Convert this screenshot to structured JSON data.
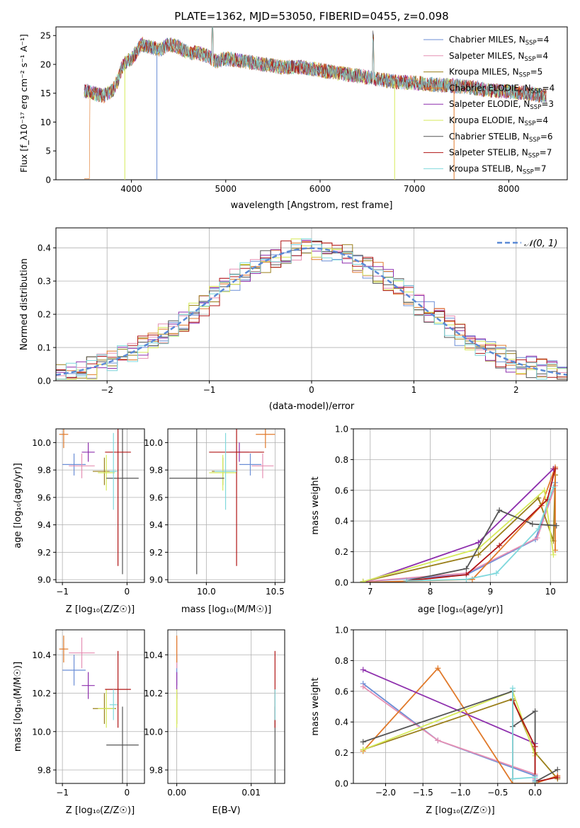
{
  "figure_title": "PLATE=1362, MJD=53050, FIBERID=0455, z=0.098",
  "colors": {
    "chabrier_miles": "#6b8ed6",
    "salpeter_miles": "#e68fb3",
    "kroupa_miles": "#9a7f1a",
    "chabrier_elodie": "#e0792a",
    "salpeter_elodie": "#8e2fad",
    "kroupa_elodie": "#d6ea5a",
    "chabrier_stelib": "#555555",
    "salpeter_stelib": "#b01515",
    "kroupa_stelib": "#7fd8dc",
    "normal_curve": "#5b8ad6",
    "grid": "#b0b0b0"
  },
  "chart_data": [
    {
      "id": "spectrum",
      "type": "line",
      "title": "",
      "xlabel": "wavelength [Angstrom, rest frame]",
      "ylabel": "Flux [f_λ10⁻¹⁷ erg cm⁻² s⁻¹ A⁻¹]",
      "xlim": [
        3200,
        8620
      ],
      "ylim": [
        0,
        26.5
      ],
      "xticks": [
        4000,
        5000,
        6000,
        7000,
        8000
      ],
      "yticks": [
        0,
        5,
        10,
        15,
        20,
        25
      ],
      "grid": false,
      "legend_position": "top-right",
      "legend": [
        {
          "label": "Chabrier MILES, N",
          "sub": "SSP",
          "suffix": "=4",
          "color": "#6b8ed6"
        },
        {
          "label": "Salpeter MILES, N",
          "sub": "SSP",
          "suffix": "=4",
          "color": "#e68fb3"
        },
        {
          "label": "Kroupa MILES, N",
          "sub": "SSP",
          "suffix": "=5",
          "color": "#9a7f1a"
        },
        {
          "label": "Chabrier ELODIE, N",
          "sub": "SSP",
          "suffix": "=4",
          "color": "#e0792a"
        },
        {
          "label": "Salpeter ELODIE, N",
          "sub": "SSP",
          "suffix": "=3",
          "color": "#8e2fad"
        },
        {
          "label": "Kroupa ELODIE, N",
          "sub": "SSP",
          "suffix": "=4",
          "color": "#d6ea5a"
        },
        {
          "label": "Chabrier STELIB, N",
          "sub": "SSP",
          "suffix": "=6",
          "color": "#555555"
        },
        {
          "label": "Salpeter STELIB, N",
          "sub": "SSP",
          "suffix": "=7",
          "color": "#b01515"
        },
        {
          "label": "Kroupa STELIB, N",
          "sub": "SSP",
          "suffix": "=7",
          "color": "#7fd8dc"
        }
      ],
      "continuum": {
        "x": [
          3500,
          3600,
          3700,
          3800,
          3850,
          3900,
          3950,
          4000,
          4050,
          4100,
          4200,
          4300,
          4400,
          4500,
          4600,
          4700,
          4800,
          4900,
          5000,
          5200,
          5400,
          5600,
          5800,
          6000,
          6200,
          6400,
          6600,
          6800,
          7000,
          7200,
          7400,
          7600,
          7800,
          8000,
          8200,
          8400
        ],
        "y": [
          15.5,
          15.0,
          14.5,
          15.5,
          17.0,
          19.5,
          20.5,
          21.0,
          22.0,
          23.5,
          23.0,
          22.5,
          23.5,
          23.0,
          22.0,
          22.0,
          21.5,
          20.5,
          21.0,
          20.5,
          20.0,
          19.5,
          19.5,
          19.0,
          18.5,
          18.0,
          17.5,
          17.0,
          16.8,
          16.5,
          16.3,
          16.0,
          15.5,
          15.3,
          15.0,
          14.5
        ]
      }
    },
    {
      "id": "residuals",
      "type": "histogram",
      "title": "",
      "xlabel": "(data-model)/error",
      "ylabel": "Normed distribution",
      "xlim": [
        -2.5,
        2.5
      ],
      "ylim": [
        0,
        0.46
      ],
      "xticks": [
        -2,
        -1,
        0,
        1,
        2
      ],
      "yticks": [
        0.0,
        0.1,
        0.2,
        0.3,
        0.4
      ],
      "grid": true,
      "legend_position": "top-right",
      "legend_label": "𝒩(0, 1)",
      "normal": {
        "mean": 0,
        "sigma": 1
      }
    },
    {
      "id": "age_vs_z",
      "type": "errorbar",
      "xlabel": "Z [log₁₀(Z/Z☉)]",
      "ylabel": "age  [log₁₀(age/yr)]",
      "xlim": [
        -1.1,
        0.27
      ],
      "ylim": [
        8.98,
        10.1
      ],
      "xticks": [
        -1,
        0
      ],
      "yticks": [
        9.0,
        9.2,
        9.4,
        9.6,
        9.8,
        10.0
      ],
      "grid": true,
      "points": [
        {
          "series": "Chabrier MILES",
          "x": -0.82,
          "xerr": 0.18,
          "y": 9.84,
          "yerr": 0.08
        },
        {
          "series": "Salpeter MILES",
          "x": -0.7,
          "xerr": 0.2,
          "y": 9.83,
          "yerr": 0.09
        },
        {
          "series": "Kroupa MILES",
          "x": -0.35,
          "xerr": 0.18,
          "y": 9.79,
          "yerr": 0.1
        },
        {
          "series": "Chabrier ELODIE",
          "x": -0.98,
          "xerr": 0.07,
          "y": 10.06,
          "yerr": 0.1
        },
        {
          "series": "Salpeter ELODIE",
          "x": -0.6,
          "xerr": 0.1,
          "y": 9.93,
          "yerr": 0.07
        },
        {
          "series": "Kroupa ELODIE",
          "x": -0.32,
          "xerr": 0.13,
          "y": 9.78,
          "yerr": 0.13
        },
        {
          "series": "Chabrier STELIB",
          "x": -0.07,
          "xerr": 0.25,
          "y": 9.74,
          "yerr": 0.7
        },
        {
          "series": "Salpeter STELIB",
          "x": -0.14,
          "xerr": 0.2,
          "y": 9.93,
          "yerr": 0.83
        },
        {
          "series": "Kroupa STELIB",
          "x": -0.21,
          "xerr": 0.06,
          "y": 9.79,
          "yerr": 0.28
        }
      ]
    },
    {
      "id": "age_vs_mass",
      "type": "errorbar",
      "xlabel": "mass [log₁₀(M/M☉)]",
      "ylabel": "",
      "xlim": [
        9.72,
        10.57
      ],
      "ylim": [
        8.98,
        10.1
      ],
      "xticks": [
        10.0,
        10.5
      ],
      "yticks": [
        9.0,
        9.2,
        9.4,
        9.6,
        9.8,
        10.0
      ],
      "grid": true,
      "points": [
        {
          "series": "Chabrier MILES",
          "x": 10.32,
          "xerr": 0.08,
          "y": 9.84,
          "yerr": 0.08
        },
        {
          "series": "Salpeter MILES",
          "x": 10.41,
          "xerr": 0.08,
          "y": 9.83,
          "yerr": 0.09
        },
        {
          "series": "Kroupa MILES",
          "x": 10.12,
          "xerr": 0.08,
          "y": 9.79,
          "yerr": 0.1
        },
        {
          "series": "Chabrier ELODIE",
          "x": 10.43,
          "xerr": 0.07,
          "y": 10.06,
          "yerr": 0.1
        },
        {
          "series": "Salpeter ELODIE",
          "x": 10.24,
          "xerr": 0.07,
          "y": 9.93,
          "yerr": 0.07
        },
        {
          "series": "Kroupa ELODIE",
          "x": 10.12,
          "xerr": 0.1,
          "y": 9.78,
          "yerr": 0.13
        },
        {
          "series": "Chabrier STELIB",
          "x": 9.93,
          "xerr": 0.2,
          "y": 9.74,
          "yerr": 0.7
        },
        {
          "series": "Salpeter STELIB",
          "x": 10.22,
          "xerr": 0.2,
          "y": 9.93,
          "yerr": 0.83
        },
        {
          "series": "Kroupa STELIB",
          "x": 10.14,
          "xerr": 0.08,
          "y": 9.79,
          "yerr": 0.28
        }
      ]
    },
    {
      "id": "weight_vs_age",
      "type": "line",
      "xlabel": "age  [log₁₀(age/yr)]",
      "ylabel": "mass weight",
      "xlim": [
        6.72,
        10.28
      ],
      "ylim": [
        0,
        1.0
      ],
      "xticks": [
        7,
        8,
        9,
        10
      ],
      "yticks": [
        0.0,
        0.2,
        0.4,
        0.6,
        0.8,
        1.0
      ],
      "grid": true,
      "series": [
        {
          "name": "Chabrier MILES",
          "x": [
            6.88,
            8.6,
            9.75,
            10.08
          ],
          "y": [
            0.005,
            0.05,
            0.28,
            0.65
          ]
        },
        {
          "name": "Salpeter MILES",
          "x": [
            6.88,
            8.6,
            9.78,
            10.08
          ],
          "y": [
            0.005,
            0.06,
            0.29,
            0.63
          ]
        },
        {
          "name": "Kroupa MILES",
          "x": [
            6.88,
            8.8,
            9.8,
            10.05,
            10.08
          ],
          "y": [
            0.005,
            0.18,
            0.55,
            0.27,
            0.7
          ]
        },
        {
          "name": "Chabrier ELODIE",
          "x": [
            6.88,
            8.7,
            9.85,
            10.08,
            10.08
          ],
          "y": [
            0.0,
            0.02,
            0.5,
            0.75,
            0.21
          ]
        },
        {
          "name": "Salpeter ELODIE",
          "x": [
            6.88,
            8.8,
            10.05
          ],
          "y": [
            0.0,
            0.26,
            0.74
          ]
        },
        {
          "name": "Kroupa ELODIE",
          "x": [
            6.88,
            8.8,
            9.9,
            10.05
          ],
          "y": [
            0.005,
            0.22,
            0.6,
            0.18
          ]
        },
        {
          "name": "Chabrier STELIB",
          "x": [
            7.6,
            8.6,
            9.15,
            9.7,
            10.1
          ],
          "y": [
            0.01,
            0.09,
            0.47,
            0.38,
            0.37
          ]
        },
        {
          "name": "Salpeter STELIB",
          "x": [
            7.6,
            8.6,
            9.15,
            9.95,
            10.08
          ],
          "y": [
            0.01,
            0.05,
            0.24,
            0.54,
            0.74
          ]
        },
        {
          "name": "Kroupa STELIB",
          "x": [
            7.6,
            8.6,
            9.1,
            9.8,
            10.05
          ],
          "y": [
            0.01,
            0.02,
            0.06,
            0.35,
            0.62
          ]
        }
      ]
    },
    {
      "id": "mass_vs_z",
      "type": "errorbar",
      "xlabel": "Z [log₁₀(Z/Z☉)]",
      "ylabel": "mass [log₁₀(M/M☉)]",
      "xlim": [
        -1.1,
        0.27
      ],
      "ylim": [
        9.73,
        10.53
      ],
      "xticks": [
        -1,
        0
      ],
      "yticks": [
        9.8,
        10.0,
        10.2,
        10.4
      ],
      "grid": true,
      "points": [
        {
          "series": "Chabrier MILES",
          "x": -0.82,
          "xerr": 0.18,
          "y": 10.32,
          "yerr": 0.08
        },
        {
          "series": "Salpeter MILES",
          "x": -0.7,
          "xerr": 0.2,
          "y": 10.41,
          "yerr": 0.08
        },
        {
          "series": "Kroupa MILES",
          "x": -0.35,
          "xerr": 0.18,
          "y": 10.12,
          "yerr": 0.08
        },
        {
          "series": "Chabrier ELODIE",
          "x": -0.98,
          "xerr": 0.07,
          "y": 10.43,
          "yerr": 0.07
        },
        {
          "series": "Salpeter ELODIE",
          "x": -0.6,
          "xerr": 0.1,
          "y": 10.24,
          "yerr": 0.07
        },
        {
          "series": "Kroupa ELODIE",
          "x": -0.32,
          "xerr": 0.13,
          "y": 10.12,
          "yerr": 0.1
        },
        {
          "series": "Chabrier STELIB",
          "x": -0.07,
          "xerr": 0.25,
          "y": 9.93,
          "yerr": 0.2
        },
        {
          "series": "Salpeter STELIB",
          "x": -0.14,
          "xerr": 0.2,
          "y": 10.22,
          "yerr": 0.2
        },
        {
          "series": "Kroupa STELIB",
          "x": -0.21,
          "xerr": 0.06,
          "y": 10.14,
          "yerr": 0.08
        }
      ]
    },
    {
      "id": "mass_vs_ebv",
      "type": "errorbar",
      "xlabel": "E(B-V)",
      "ylabel": "",
      "xlim": [
        -0.0012,
        0.0145
      ],
      "ylim": [
        9.73,
        10.53
      ],
      "xticks": [
        0.0,
        0.01
      ],
      "yticks": [
        9.8,
        10.0,
        10.2,
        10.4
      ],
      "grid": true,
      "points": [
        {
          "series": "Chabrier MILES",
          "x": 0.0,
          "xerr": 0,
          "y": 10.32,
          "yerr": 0.08
        },
        {
          "series": "Salpeter MILES",
          "x": 0.0,
          "xerr": 0,
          "y": 10.41,
          "yerr": 0.08
        },
        {
          "series": "Kroupa MILES",
          "x": 0.0,
          "xerr": 0,
          "y": 10.12,
          "yerr": 0.08
        },
        {
          "series": "Chabrier ELODIE",
          "x": 0.0,
          "xerr": 0,
          "y": 10.43,
          "yerr": 0.07
        },
        {
          "series": "Salpeter ELODIE",
          "x": 0.0,
          "xerr": 0,
          "y": 10.24,
          "yerr": 0.07
        },
        {
          "series": "Kroupa ELODIE",
          "x": 0.0,
          "xerr": 0,
          "y": 10.12,
          "yerr": 0.1
        },
        {
          "series": "Chabrier STELIB",
          "x": 0.0132,
          "xerr": 0,
          "y": 9.93,
          "yerr": 0.2
        },
        {
          "series": "Salpeter STELIB",
          "x": 0.0132,
          "xerr": 0,
          "y": 10.22,
          "yerr": 0.2
        },
        {
          "series": "Kroupa STELIB",
          "x": 0.0132,
          "xerr": 0,
          "y": 10.14,
          "yerr": 0.08
        }
      ]
    },
    {
      "id": "weight_vs_z",
      "type": "line",
      "xlabel": "Z [log₁₀(Z/Z☉)]",
      "ylabel": "mass weight",
      "xlim": [
        -2.43,
        0.43
      ],
      "ylim": [
        0,
        1.0
      ],
      "xticks": [
        -2.0,
        -1.5,
        -1.0,
        -0.5,
        0.0
      ],
      "yticks": [
        0.0,
        0.2,
        0.4,
        0.6,
        0.8,
        1.0
      ],
      "grid": true,
      "series": [
        {
          "name": "Chabrier MILES",
          "x": [
            -2.3,
            -1.3,
            0.0,
            0.0
          ],
          "y": [
            0.65,
            0.28,
            0.05,
            0.02
          ]
        },
        {
          "name": "Salpeter MILES",
          "x": [
            -2.3,
            -1.3,
            0.0,
            0.0
          ],
          "y": [
            0.63,
            0.28,
            0.06,
            0.03
          ]
        },
        {
          "name": "Kroupa MILES",
          "x": [
            -2.3,
            -0.3,
            0.0,
            0.3
          ],
          "y": [
            0.22,
            0.55,
            0.2,
            0.03
          ]
        },
        {
          "name": "Chabrier ELODIE",
          "x": [
            -2.3,
            -1.3,
            -0.3,
            0.0,
            0.3
          ],
          "y": [
            0.21,
            0.75,
            0.0,
            0.0,
            0.05
          ]
        },
        {
          "name": "Salpeter ELODIE",
          "x": [
            -2.3,
            0.0,
            0.0
          ],
          "y": [
            0.74,
            0.26,
            0.0
          ]
        },
        {
          "name": "Kroupa ELODIE",
          "x": [
            -2.3,
            -0.3,
            0.0,
            0.0
          ],
          "y": [
            0.22,
            0.6,
            0.18,
            0.0
          ]
        },
        {
          "name": "Chabrier STELIB",
          "x": [
            -2.3,
            -0.3,
            -0.3,
            0.0,
            0.0,
            0.3
          ],
          "y": [
            0.27,
            0.6,
            0.37,
            0.47,
            0.01,
            0.09
          ]
        },
        {
          "name": "Salpeter STELIB",
          "x": [
            -0.3,
            -0.3,
            0.0,
            0.0,
            0.3
          ],
          "y": [
            0.03,
            0.54,
            0.24,
            0.01,
            0.04
          ]
        },
        {
          "name": "Kroupa STELIB",
          "x": [
            -0.3,
            -0.3,
            0.0,
            0.0
          ],
          "y": [
            0.62,
            0.03,
            0.04,
            0.01
          ]
        }
      ]
    }
  ]
}
